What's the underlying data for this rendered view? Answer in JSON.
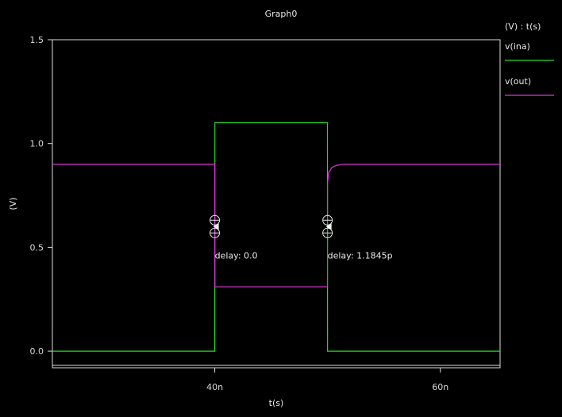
{
  "chart_data": {
    "type": "line",
    "title": "Graph0",
    "xlabel": "t(s)",
    "ylabel": "(V)",
    "xlim": [
      25.6,
      65.3
    ],
    "ylim": [
      -0.08,
      1.5
    ],
    "x_unit": "ns",
    "x_ticks": [
      {
        "value": 40,
        "label": "40n"
      },
      {
        "value": 60,
        "label": "60n"
      }
    ],
    "y_ticks": [
      {
        "value": 0.0,
        "label": "0.0"
      },
      {
        "value": 0.5,
        "label": "0.5"
      },
      {
        "value": 1.0,
        "label": "1.0"
      },
      {
        "value": 1.5,
        "label": "1.5"
      }
    ],
    "legend_title": "(V) : t(s)",
    "legend_position": "right",
    "series": [
      {
        "name": "v(ina)",
        "color": "#22dd22",
        "x": [
          25.6,
          40.0,
          40.01,
          49.99,
          50.0,
          65.3
        ],
        "y": [
          0.0,
          0.0,
          1.1,
          1.1,
          0.0,
          0.0
        ]
      },
      {
        "name": "v(out)",
        "color": "#dd33dd",
        "x": [
          25.6,
          40.0,
          40.01,
          49.99,
          50.0,
          50.1,
          50.4,
          50.8,
          51.5,
          65.3
        ],
        "y": [
          0.9,
          0.9,
          0.31,
          0.31,
          0.81,
          0.86,
          0.885,
          0.895,
          0.9,
          0.9
        ]
      }
    ],
    "annotations": [
      {
        "x": 40.0,
        "y": 0.6,
        "label": "delay: 0.0"
      },
      {
        "x": 50.0,
        "y": 0.6,
        "label": "delay: 1.1845p"
      }
    ]
  }
}
